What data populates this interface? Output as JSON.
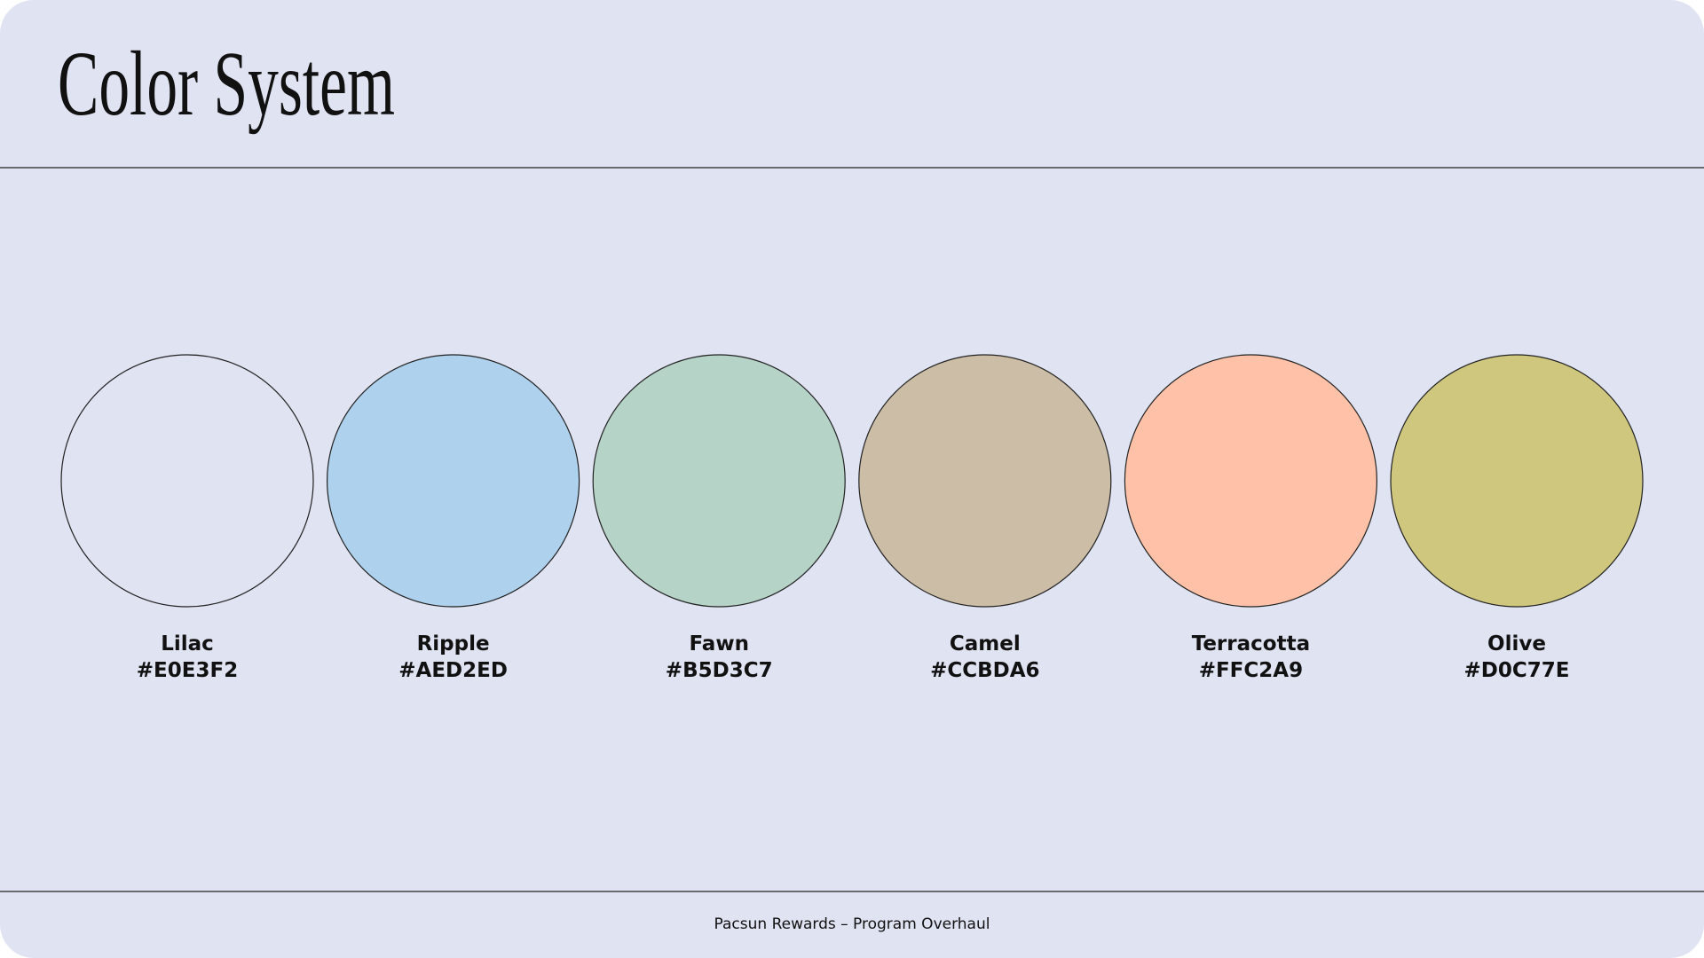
{
  "header": {
    "title": "Color System"
  },
  "swatches": [
    {
      "name": "Lilac",
      "hex": "#E0E3F2"
    },
    {
      "name": "Ripple",
      "hex": "#AED2ED"
    },
    {
      "name": "Fawn",
      "hex": "#B5D3C7"
    },
    {
      "name": "Camel",
      "hex": "#CCBDA6"
    },
    {
      "name": "Terracotta",
      "hex": "#FFC2A9"
    },
    {
      "name": "Olive",
      "hex": "#D0C77E"
    }
  ],
  "footer": {
    "text": "Pacsun Rewards – Program Overhaul"
  }
}
